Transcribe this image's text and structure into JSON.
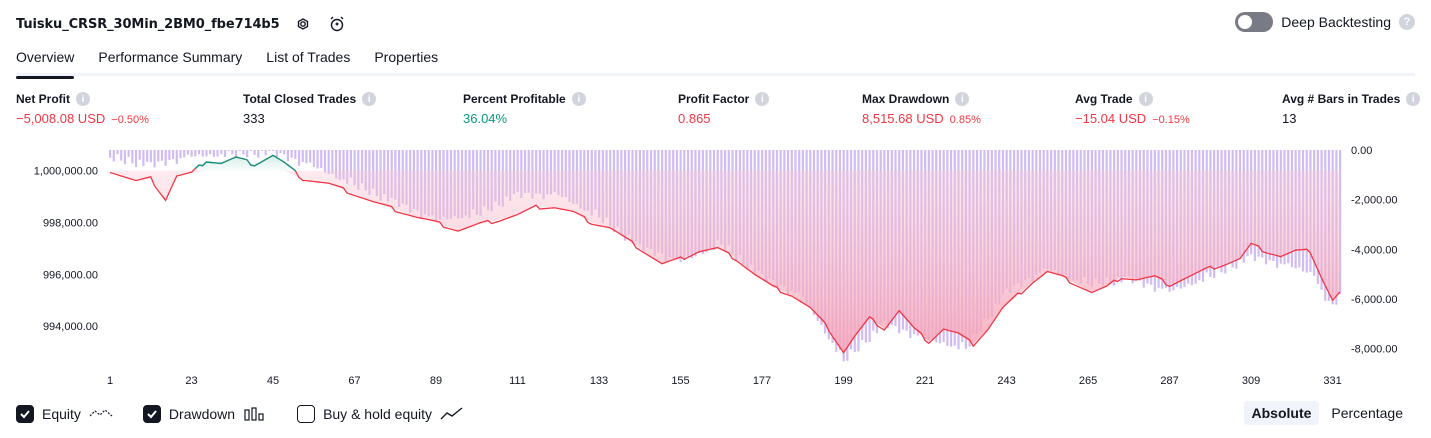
{
  "header": {
    "title": "Tuisku_CRSR_30Min_2BM0_fbe714b5",
    "deep_backtesting_label": "Deep Backtesting"
  },
  "tabs": [
    {
      "label": "Overview",
      "active": true
    },
    {
      "label": "Performance Summary",
      "active": false
    },
    {
      "label": "List of Trades",
      "active": false
    },
    {
      "label": "Properties",
      "active": false
    }
  ],
  "metrics": [
    {
      "label": "Net Profit",
      "value": "−5,008.08 USD",
      "pct": "−0.50%",
      "tone": "neg"
    },
    {
      "label": "Total Closed Trades",
      "value": "333",
      "pct": "",
      "tone": "neutral"
    },
    {
      "label": "Percent Profitable",
      "value": "36.04%",
      "pct": "",
      "tone": "pos"
    },
    {
      "label": "Profit Factor",
      "value": "0.865",
      "pct": "",
      "tone": "neg"
    },
    {
      "label": "Max Drawdown",
      "value": "8,515.68 USD",
      "pct": "0.85%",
      "tone": "neg"
    },
    {
      "label": "Avg Trade",
      "value": "−15.04 USD",
      "pct": "−0.15%",
      "tone": "neg"
    },
    {
      "label": "Avg # Bars in Trades",
      "value": "13",
      "pct": "",
      "tone": "neutral"
    }
  ],
  "legend": {
    "equity_label": "Equity",
    "drawdown_label": "Drawdown",
    "buyhold_label": "Buy & hold equity"
  },
  "mode": {
    "absolute_label": "Absolute",
    "percentage_label": "Percentage"
  },
  "colors": {
    "equity_line": "#f23645",
    "equity_up": "#089981",
    "drawdown_bar": "#c9b0f0",
    "area_fill": "#f7a1b5"
  },
  "chart_data": {
    "type": "line",
    "left_axis": {
      "ticks": [
        "1,000,000.00",
        "998,000.00",
        "996,000.00",
        "994,000.00"
      ],
      "tick_values": [
        1000000,
        998000,
        996000,
        994000
      ],
      "range": [
        992650,
        1000800
      ]
    },
    "right_axis": {
      "ticks": [
        "0.00",
        "-2,000.00",
        "-4,000.00",
        "-6,000.00",
        "-8,000.00"
      ],
      "tick_values": [
        0,
        -2000,
        -4000,
        -6000,
        -8000
      ],
      "range": [
        -8500,
        0
      ]
    },
    "x_ticks": [
      "1",
      "23",
      "45",
      "67",
      "89",
      "111",
      "133",
      "155",
      "177",
      "199",
      "221",
      "243",
      "265",
      "287",
      "309",
      "331"
    ],
    "x_range": [
      1,
      333
    ],
    "series": [
      {
        "role": "equity",
        "points": [
          [
            1,
            1000000
          ],
          [
            8,
            999600
          ],
          [
            12,
            999700
          ],
          [
            16,
            998900
          ],
          [
            19,
            999800
          ],
          [
            23,
            999900
          ],
          [
            27,
            1000400
          ],
          [
            31,
            1000300
          ],
          [
            35,
            1000500
          ],
          [
            40,
            1000250
          ],
          [
            45,
            1000600
          ],
          [
            48,
            1000300
          ],
          [
            53,
            999700
          ],
          [
            60,
            999500
          ],
          [
            67,
            999100
          ],
          [
            72,
            998800
          ],
          [
            78,
            998500
          ],
          [
            84,
            998200
          ],
          [
            89,
            998000
          ],
          [
            95,
            997700
          ],
          [
            101,
            997950
          ],
          [
            106,
            998100
          ],
          [
            111,
            998300
          ],
          [
            116,
            998600
          ],
          [
            121,
            998600
          ],
          [
            126,
            998400
          ],
          [
            131,
            998000
          ],
          [
            136,
            997800
          ],
          [
            140,
            997400
          ],
          [
            145,
            996900
          ],
          [
            150,
            996400
          ],
          [
            155,
            996600
          ],
          [
            160,
            996900
          ],
          [
            165,
            997000
          ],
          [
            170,
            996600
          ],
          [
            175,
            996000
          ],
          [
            180,
            995500
          ],
          [
            185,
            995200
          ],
          [
            190,
            994700
          ],
          [
            195,
            993900
          ],
          [
            199,
            993000
          ],
          [
            202,
            993600
          ],
          [
            206,
            994300
          ],
          [
            210,
            993900
          ],
          [
            214,
            994600
          ],
          [
            218,
            993900
          ],
          [
            222,
            993400
          ],
          [
            226,
            993900
          ],
          [
            230,
            993700
          ],
          [
            234,
            993300
          ],
          [
            238,
            993900
          ],
          [
            242,
            994700
          ],
          [
            246,
            995200
          ],
          [
            250,
            995700
          ],
          [
            254,
            996100
          ],
          [
            258,
            995900
          ],
          [
            262,
            995600
          ],
          [
            266,
            995300
          ],
          [
            270,
            995500
          ],
          [
            274,
            995900
          ],
          [
            278,
            995800
          ],
          [
            283,
            995900
          ],
          [
            287,
            995600
          ],
          [
            292,
            995900
          ],
          [
            297,
            996200
          ],
          [
            302,
            996400
          ],
          [
            306,
            996600
          ],
          [
            309,
            997150
          ],
          [
            313,
            996900
          ],
          [
            317,
            996700
          ],
          [
            321,
            996900
          ],
          [
            325,
            996900
          ],
          [
            328,
            995900
          ],
          [
            331,
            995000
          ],
          [
            333,
            995300
          ]
        ]
      },
      {
        "role": "drawdown",
        "points": [
          [
            1,
            -200
          ],
          [
            12,
            -500
          ],
          [
            23,
            -150
          ],
          [
            35,
            -50
          ],
          [
            45,
            0
          ],
          [
            55,
            -500
          ],
          [
            67,
            -1300
          ],
          [
            78,
            -2000
          ],
          [
            89,
            -2700
          ],
          [
            100,
            -2500
          ],
          [
            111,
            -1700
          ],
          [
            122,
            -1700
          ],
          [
            133,
            -2600
          ],
          [
            144,
            -3800
          ],
          [
            155,
            -4400
          ],
          [
            166,
            -3700
          ],
          [
            177,
            -5000
          ],
          [
            188,
            -5800
          ],
          [
            199,
            -8400
          ],
          [
            210,
            -6900
          ],
          [
            221,
            -7500
          ],
          [
            232,
            -7900
          ],
          [
            243,
            -5600
          ],
          [
            254,
            -4700
          ],
          [
            265,
            -5300
          ],
          [
            276,
            -5100
          ],
          [
            287,
            -5600
          ],
          [
            298,
            -5000
          ],
          [
            309,
            -4200
          ],
          [
            320,
            -4600
          ],
          [
            326,
            -4900
          ],
          [
            330,
            -6200
          ],
          [
            333,
            -5900
          ]
        ]
      }
    ]
  }
}
